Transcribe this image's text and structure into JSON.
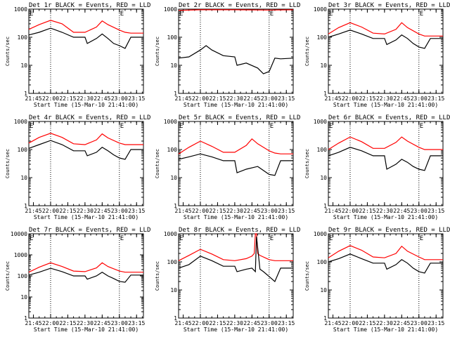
{
  "chart_data": [
    {
      "type": "line",
      "title": "Det 1r BLACK = Events, RED = LLD",
      "marker": "E",
      "ylabel": "Counts/sec",
      "xlabel": "Start Time (15-Mar-10 21:41:00)",
      "xticks": [
        "21:45",
        "22:00",
        "22:15",
        "22:30",
        "22:45",
        "23:00",
        "23:15"
      ],
      "yticks": [
        "1",
        "10",
        "100",
        "1000"
      ],
      "yscale": "log",
      "ylim": [
        1,
        1000
      ],
      "xlim": [
        "21:41",
        "23:21"
      ],
      "vlines": [
        "22:00",
        "23:00"
      ],
      "series": [
        {
          "name": "Events",
          "color": "#000000",
          "x": [
            "21:41",
            "21:50",
            "22:00",
            "22:10",
            "22:20",
            "22:25",
            "22:30",
            "22:32",
            "22:40",
            "22:45",
            "22:50",
            "22:55",
            "23:00",
            "23:05",
            "23:10",
            "23:15",
            "23:21"
          ],
          "y": [
            120,
            150,
            210,
            150,
            100,
            100,
            100,
            60,
            90,
            130,
            90,
            60,
            50,
            40,
            100,
            100,
            100
          ]
        },
        {
          "name": "LLD",
          "color": "#ff0000",
          "x": [
            "21:41",
            "21:50",
            "22:00",
            "22:10",
            "22:20",
            "22:30",
            "22:40",
            "22:45",
            "22:50",
            "23:00",
            "23:05",
            "23:10",
            "23:21"
          ],
          "y": [
            190,
            280,
            400,
            300,
            150,
            150,
            230,
            380,
            280,
            180,
            150,
            140,
            140
          ]
        }
      ]
    },
    {
      "type": "line",
      "title": "Det 2r BLACK = Events, RED = LLD",
      "marker": "E",
      "ylabel": "Counts/sec",
      "xlabel": "Start Time (15-Mar-10 21:41:00)",
      "xticks": [
        "21:45",
        "22:00",
        "22:15",
        "22:30",
        "22:45",
        "23:00",
        "23:15"
      ],
      "yticks": [
        "1",
        "10",
        "100",
        "1000"
      ],
      "yscale": "log",
      "ylim": [
        1,
        1000
      ],
      "xlim": [
        "21:41",
        "23:21"
      ],
      "vlines": [
        "22:00",
        "23:00"
      ],
      "series": [
        {
          "name": "Events",
          "color": "#000000",
          "x": [
            "21:41",
            "21:50",
            "22:00",
            "22:05",
            "22:10",
            "22:20",
            "22:30",
            "22:32",
            "22:40",
            "22:50",
            "22:55",
            "23:00",
            "23:05",
            "23:10",
            "23:21"
          ],
          "y": [
            18,
            20,
            35,
            50,
            35,
            22,
            20,
            10,
            12,
            8,
            5,
            6,
            18,
            17,
            18
          ]
        },
        {
          "name": "LLD",
          "color": "#ff0000",
          "x": [
            "21:41",
            "22:00",
            "22:30",
            "23:00",
            "23:21"
          ],
          "y": [
            900,
            950,
            950,
            930,
            950
          ]
        }
      ]
    },
    {
      "type": "line",
      "title": "Det 3r BLACK = Events, RED = LLD",
      "marker": "E",
      "ylabel": "Counts/sec",
      "xlabel": "Start Time (15-Mar-10 21:41:00)",
      "xticks": [
        "21:45",
        "22:00",
        "22:15",
        "22:30",
        "22:45",
        "23:00",
        "23:15"
      ],
      "yticks": [
        "1",
        "10",
        "100",
        "1000"
      ],
      "yscale": "log",
      "ylim": [
        1,
        1000
      ],
      "xlim": [
        "21:41",
        "23:21"
      ],
      "vlines": [
        "22:00",
        "23:00"
      ],
      "series": [
        {
          "name": "Events",
          "color": "#000000",
          "x": [
            "21:41",
            "21:50",
            "22:00",
            "22:10",
            "22:20",
            "22:30",
            "22:32",
            "22:40",
            "22:45",
            "22:50",
            "22:55",
            "23:00",
            "23:05",
            "23:10",
            "23:21"
          ],
          "y": [
            100,
            130,
            180,
            130,
            90,
            90,
            55,
            80,
            120,
            90,
            60,
            45,
            40,
            90,
            90
          ]
        },
        {
          "name": "LLD",
          "color": "#ff0000",
          "x": [
            "21:41",
            "21:50",
            "22:00",
            "22:10",
            "22:20",
            "22:30",
            "22:40",
            "22:45",
            "22:50",
            "23:00",
            "23:05",
            "23:10",
            "23:21"
          ],
          "y": [
            130,
            220,
            330,
            230,
            140,
            130,
            190,
            330,
            220,
            130,
            110,
            110,
            110
          ]
        }
      ]
    },
    {
      "type": "line",
      "title": "Det 4r BLACK = Events, RED = LLD",
      "marker": "E",
      "ylabel": "Counts/sec",
      "xlabel": "Start Time (15-Mar-10 21:41:00)",
      "xticks": [
        "21:45",
        "22:00",
        "22:15",
        "22:30",
        "22:45",
        "23:00",
        "23:15"
      ],
      "yticks": [
        "1",
        "10",
        "100",
        "1000"
      ],
      "yscale": "log",
      "ylim": [
        1,
        1000
      ],
      "xlim": [
        "21:41",
        "23:21"
      ],
      "vlines": [
        "22:00",
        "23:00"
      ],
      "series": [
        {
          "name": "Events",
          "color": "#000000",
          "x": [
            "21:41",
            "21:50",
            "22:00",
            "22:10",
            "22:20",
            "22:30",
            "22:32",
            "22:40",
            "22:45",
            "22:50",
            "22:55",
            "23:00",
            "23:05",
            "23:10",
            "23:21"
          ],
          "y": [
            110,
            150,
            210,
            150,
            90,
            90,
            60,
            80,
            120,
            90,
            65,
            50,
            45,
            100,
            100
          ]
        },
        {
          "name": "LLD",
          "color": "#ff0000",
          "x": [
            "21:41",
            "21:50",
            "22:00",
            "22:10",
            "22:20",
            "22:30",
            "22:40",
            "22:45",
            "22:50",
            "23:00",
            "23:05",
            "23:10",
            "23:21"
          ],
          "y": [
            170,
            270,
            380,
            270,
            160,
            150,
            220,
            360,
            260,
            170,
            150,
            150,
            150
          ]
        }
      ]
    },
    {
      "type": "line",
      "title": "Det 5r BLACK = Events, RED = LLD",
      "marker": "E",
      "ylabel": "Counts/sec",
      "xlabel": "Start Time (15-Mar-10 21:41:00)",
      "xticks": [
        "21:45",
        "22:00",
        "22:15",
        "22:30",
        "22:45",
        "23:00",
        "23:15"
      ],
      "yticks": [
        "1",
        "10",
        "100",
        "1000"
      ],
      "yscale": "log",
      "ylim": [
        1,
        1000
      ],
      "xlim": [
        "21:41",
        "23:21"
      ],
      "vlines": [
        "22:00",
        "23:00"
      ],
      "series": [
        {
          "name": "Events",
          "color": "#000000",
          "x": [
            "21:41",
            "21:50",
            "22:00",
            "22:10",
            "22:20",
            "22:30",
            "22:32",
            "22:40",
            "22:50",
            "22:55",
            "23:00",
            "23:05",
            "23:10",
            "23:21"
          ],
          "y": [
            45,
            55,
            70,
            55,
            40,
            40,
            15,
            20,
            25,
            18,
            13,
            12,
            40,
            40
          ]
        },
        {
          "name": "LLD",
          "color": "#ff0000",
          "x": [
            "21:41",
            "21:50",
            "22:00",
            "22:10",
            "22:20",
            "22:30",
            "22:40",
            "22:45",
            "22:50",
            "23:00",
            "23:05",
            "23:10",
            "23:21"
          ],
          "y": [
            70,
            120,
            200,
            130,
            80,
            80,
            140,
            240,
            160,
            90,
            75,
            70,
            70
          ]
        }
      ]
    },
    {
      "type": "line",
      "title": "Det 6r BLACK = Events, RED = LLD",
      "marker": "E",
      "ylabel": "Counts/sec",
      "xlabel": "Start Time (15-Mar-10 21:41:00)",
      "xticks": [
        "21:45",
        "22:00",
        "22:15",
        "22:30",
        "22:45",
        "23:00",
        "23:15"
      ],
      "yticks": [
        "1",
        "10",
        "100",
        "1000"
      ],
      "yscale": "log",
      "ylim": [
        1,
        1000
      ],
      "xlim": [
        "21:41",
        "23:21"
      ],
      "vlines": [
        "22:00",
        "23:00"
      ],
      "series": [
        {
          "name": "Events",
          "color": "#000000",
          "x": [
            "21:41",
            "21:50",
            "22:00",
            "22:10",
            "22:20",
            "22:30",
            "22:32",
            "22:40",
            "22:45",
            "22:50",
            "22:55",
            "23:00",
            "23:05",
            "23:10",
            "23:21"
          ],
          "y": [
            60,
            80,
            120,
            90,
            60,
            60,
            20,
            30,
            45,
            35,
            25,
            20,
            18,
            60,
            60
          ]
        },
        {
          "name": "LLD",
          "color": "#ff0000",
          "x": [
            "21:41",
            "21:50",
            "22:00",
            "22:10",
            "22:20",
            "22:30",
            "22:40",
            "22:45",
            "22:50",
            "23:00",
            "23:05",
            "23:10",
            "23:21"
          ],
          "y": [
            100,
            170,
            280,
            190,
            110,
            110,
            180,
            280,
            200,
            120,
            100,
            100,
            100
          ]
        }
      ]
    },
    {
      "type": "line",
      "title": "Det 7r BLACK = Events, RED = LLD",
      "marker": "E",
      "ylabel": "Counts/sec",
      "xlabel": "Start Time (15-Mar-10 21:41:00)",
      "xticks": [
        "21:45",
        "22:00",
        "22:15",
        "22:30",
        "22:45",
        "23:00",
        "23:15"
      ],
      "yticks": [
        "1",
        "10",
        "100",
        "1000",
        "10000"
      ],
      "yscale": "log",
      "ylim": [
        1,
        10000
      ],
      "xlim": [
        "21:41",
        "23:21"
      ],
      "vlines": [
        "22:00",
        "23:00"
      ],
      "series": [
        {
          "name": "Events",
          "color": "#000000",
          "x": [
            "21:41",
            "21:50",
            "22:00",
            "22:10",
            "22:20",
            "22:30",
            "22:32",
            "22:40",
            "22:45",
            "22:50",
            "22:55",
            "23:00",
            "23:05",
            "23:10",
            "23:21"
          ],
          "y": [
            110,
            150,
            230,
            160,
            100,
            100,
            70,
            100,
            150,
            100,
            75,
            55,
            50,
            110,
            110
          ]
        },
        {
          "name": "LLD",
          "color": "#ff0000",
          "x": [
            "21:41",
            "21:50",
            "22:00",
            "22:10",
            "22:20",
            "22:30",
            "22:40",
            "22:45",
            "22:50",
            "23:00",
            "23:05",
            "23:10",
            "23:21"
          ],
          "y": [
            150,
            260,
            420,
            280,
            170,
            160,
            240,
            420,
            280,
            170,
            150,
            150,
            150
          ]
        }
      ]
    },
    {
      "type": "line",
      "title": "Det 8r BLACK = Events, RED = LLD",
      "marker": "E",
      "ylabel": "Counts/sec",
      "xlabel": "Start Time (15-Mar-10 21:41:00)",
      "xticks": [
        "21:45",
        "22:00",
        "22:15",
        "22:30",
        "22:45",
        "23:00",
        "23:15"
      ],
      "yticks": [
        "1",
        "10",
        "100",
        "1000"
      ],
      "yscale": "log",
      "ylim": [
        1,
        1000
      ],
      "xlim": [
        "21:41",
        "23:21"
      ],
      "vlines": [
        "22:00",
        "23:00"
      ],
      "series": [
        {
          "name": "Events",
          "color": "#000000",
          "x": [
            "21:41",
            "21:50",
            "22:00",
            "22:10",
            "22:20",
            "22:30",
            "22:32",
            "22:40",
            "22:45",
            "22:48",
            "22:49",
            "22:52",
            "22:55",
            "23:00",
            "23:05",
            "23:10",
            "23:21"
          ],
          "y": [
            60,
            80,
            160,
            110,
            70,
            70,
            45,
            55,
            60,
            45,
            800,
            55,
            45,
            30,
            20,
            60,
            60
          ]
        },
        {
          "name": "LLD",
          "color": "#ff0000",
          "x": [
            "21:41",
            "21:50",
            "22:00",
            "22:10",
            "22:20",
            "22:30",
            "22:40",
            "22:45",
            "22:47",
            "22:48",
            "22:49",
            "22:50",
            "22:52",
            "23:00",
            "23:05",
            "23:10",
            "23:21"
          ],
          "y": [
            110,
            170,
            280,
            190,
            120,
            110,
            130,
            160,
            200,
            1000,
            1000,
            200,
            170,
            120,
            110,
            110,
            110
          ]
        }
      ]
    },
    {
      "type": "line",
      "title": "Det 9r BLACK = Events, RED = LLD",
      "marker": "E",
      "ylabel": "Counts/sec",
      "xlabel": "Start Time (15-Mar-10 21:41:00)",
      "xticks": [
        "21:45",
        "22:00",
        "22:15",
        "22:30",
        "22:45",
        "23:00",
        "23:15"
      ],
      "yticks": [
        "1",
        "10",
        "100",
        "1000"
      ],
      "yscale": "log",
      "ylim": [
        1,
        1000
      ],
      "xlim": [
        "21:41",
        "23:21"
      ],
      "vlines": [
        "22:00",
        "23:00"
      ],
      "series": [
        {
          "name": "Events",
          "color": "#000000",
          "x": [
            "21:41",
            "21:50",
            "22:00",
            "22:10",
            "22:20",
            "22:30",
            "22:32",
            "22:40",
            "22:45",
            "22:50",
            "22:55",
            "23:00",
            "23:05",
            "23:10",
            "23:21"
          ],
          "y": [
            100,
            130,
            190,
            130,
            90,
            90,
            55,
            80,
            120,
            90,
            60,
            45,
            40,
            90,
            90
          ]
        },
        {
          "name": "LLD",
          "color": "#ff0000",
          "x": [
            "21:41",
            "21:50",
            "22:00",
            "22:10",
            "22:20",
            "22:30",
            "22:40",
            "22:45",
            "22:50",
            "23:00",
            "23:05",
            "23:10",
            "23:21"
          ],
          "y": [
            140,
            240,
            380,
            260,
            150,
            140,
            200,
            360,
            240,
            150,
            120,
            120,
            120
          ]
        }
      ]
    }
  ]
}
